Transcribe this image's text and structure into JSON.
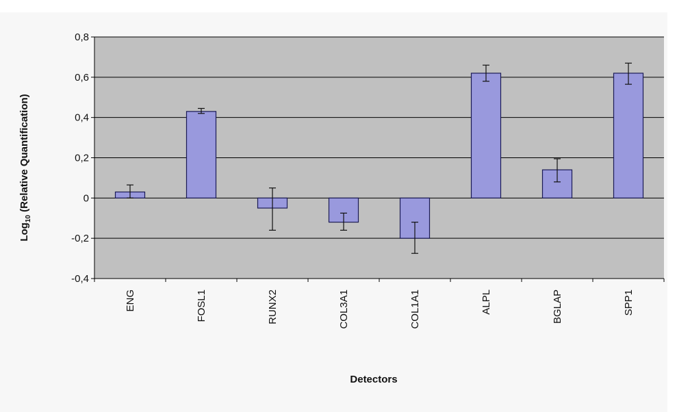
{
  "chart_data": {
    "type": "bar",
    "categories": [
      "ENG",
      "FOSL1",
      "RUNX2",
      "COL3A1",
      "COL1A1",
      "ALPL",
      "BGLAP",
      "SPP1"
    ],
    "values": [
      0.03,
      0.43,
      -0.05,
      -0.12,
      -0.2,
      0.62,
      0.14,
      0.62
    ],
    "error_low": [
      0.0,
      0.42,
      -0.16,
      -0.16,
      -0.275,
      0.58,
      0.08,
      0.565
    ],
    "error_high": [
      0.065,
      0.445,
      0.05,
      -0.075,
      -0.12,
      0.66,
      0.195,
      0.67
    ],
    "y_tick_labels": [
      "0,8",
      "0,6",
      "0,4",
      "0,2",
      "0",
      "-0,2",
      "-0,4"
    ],
    "y_tick_values": [
      0.8,
      0.6,
      0.4,
      0.2,
      0,
      -0.2,
      -0.4
    ],
    "ylim": [
      -0.4,
      0.8
    ],
    "xlabel": "Detectors",
    "ylabel": "Log10 (Relative Quantification)",
    "ylabel_base": "Log",
    "ylabel_sub": "10",
    "ylabel_rest": " (Relative Quantification)",
    "grid": true,
    "colors": {
      "plot_bg": "#c0c0c0",
      "bar_fill": "#9999dd",
      "bar_stroke": "#1a1a55",
      "grid": "#000000"
    }
  }
}
